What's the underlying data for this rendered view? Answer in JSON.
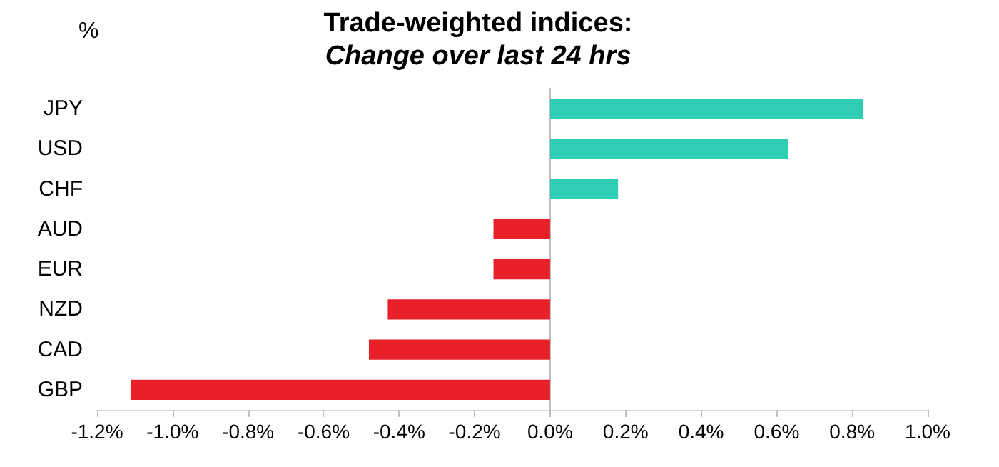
{
  "chart_data": {
    "type": "bar",
    "orientation": "horizontal",
    "title": "Trade-weighted indices:",
    "subtitle": "Change over last 24 hrs",
    "ylabel": "%",
    "categories": [
      "JPY",
      "USD",
      "CHF",
      "AUD",
      "EUR",
      "NZD",
      "CAD",
      "GBP"
    ],
    "values": [
      0.83,
      0.63,
      0.18,
      -0.15,
      -0.15,
      -0.43,
      -0.48,
      -1.11
    ],
    "colors": [
      "#2ecdb4",
      "#2ecdb4",
      "#2ecdb4",
      "#e8202a",
      "#e8202a",
      "#e8202a",
      "#e8202a",
      "#e8202a"
    ],
    "xlim": [
      -1.2,
      1.0
    ],
    "xticks": [
      {
        "value": -1.2,
        "label": "-1.2%"
      },
      {
        "value": -1.0,
        "label": "-1.0%"
      },
      {
        "value": -0.8,
        "label": "-0.8%"
      },
      {
        "value": -0.6,
        "label": "-0.6%"
      },
      {
        "value": -0.4,
        "label": "-0.4%"
      },
      {
        "value": -0.2,
        "label": "-0.2%"
      },
      {
        "value": 0,
        "label": "0.0%"
      },
      {
        "value": 0.2,
        "label": "0.2%"
      },
      {
        "value": 0.4,
        "label": "0.4%"
      },
      {
        "value": 0.6,
        "label": "0.6%"
      },
      {
        "value": 0.8,
        "label": "0.8%"
      },
      {
        "value": 1.0,
        "label": "1.0%"
      }
    ]
  }
}
